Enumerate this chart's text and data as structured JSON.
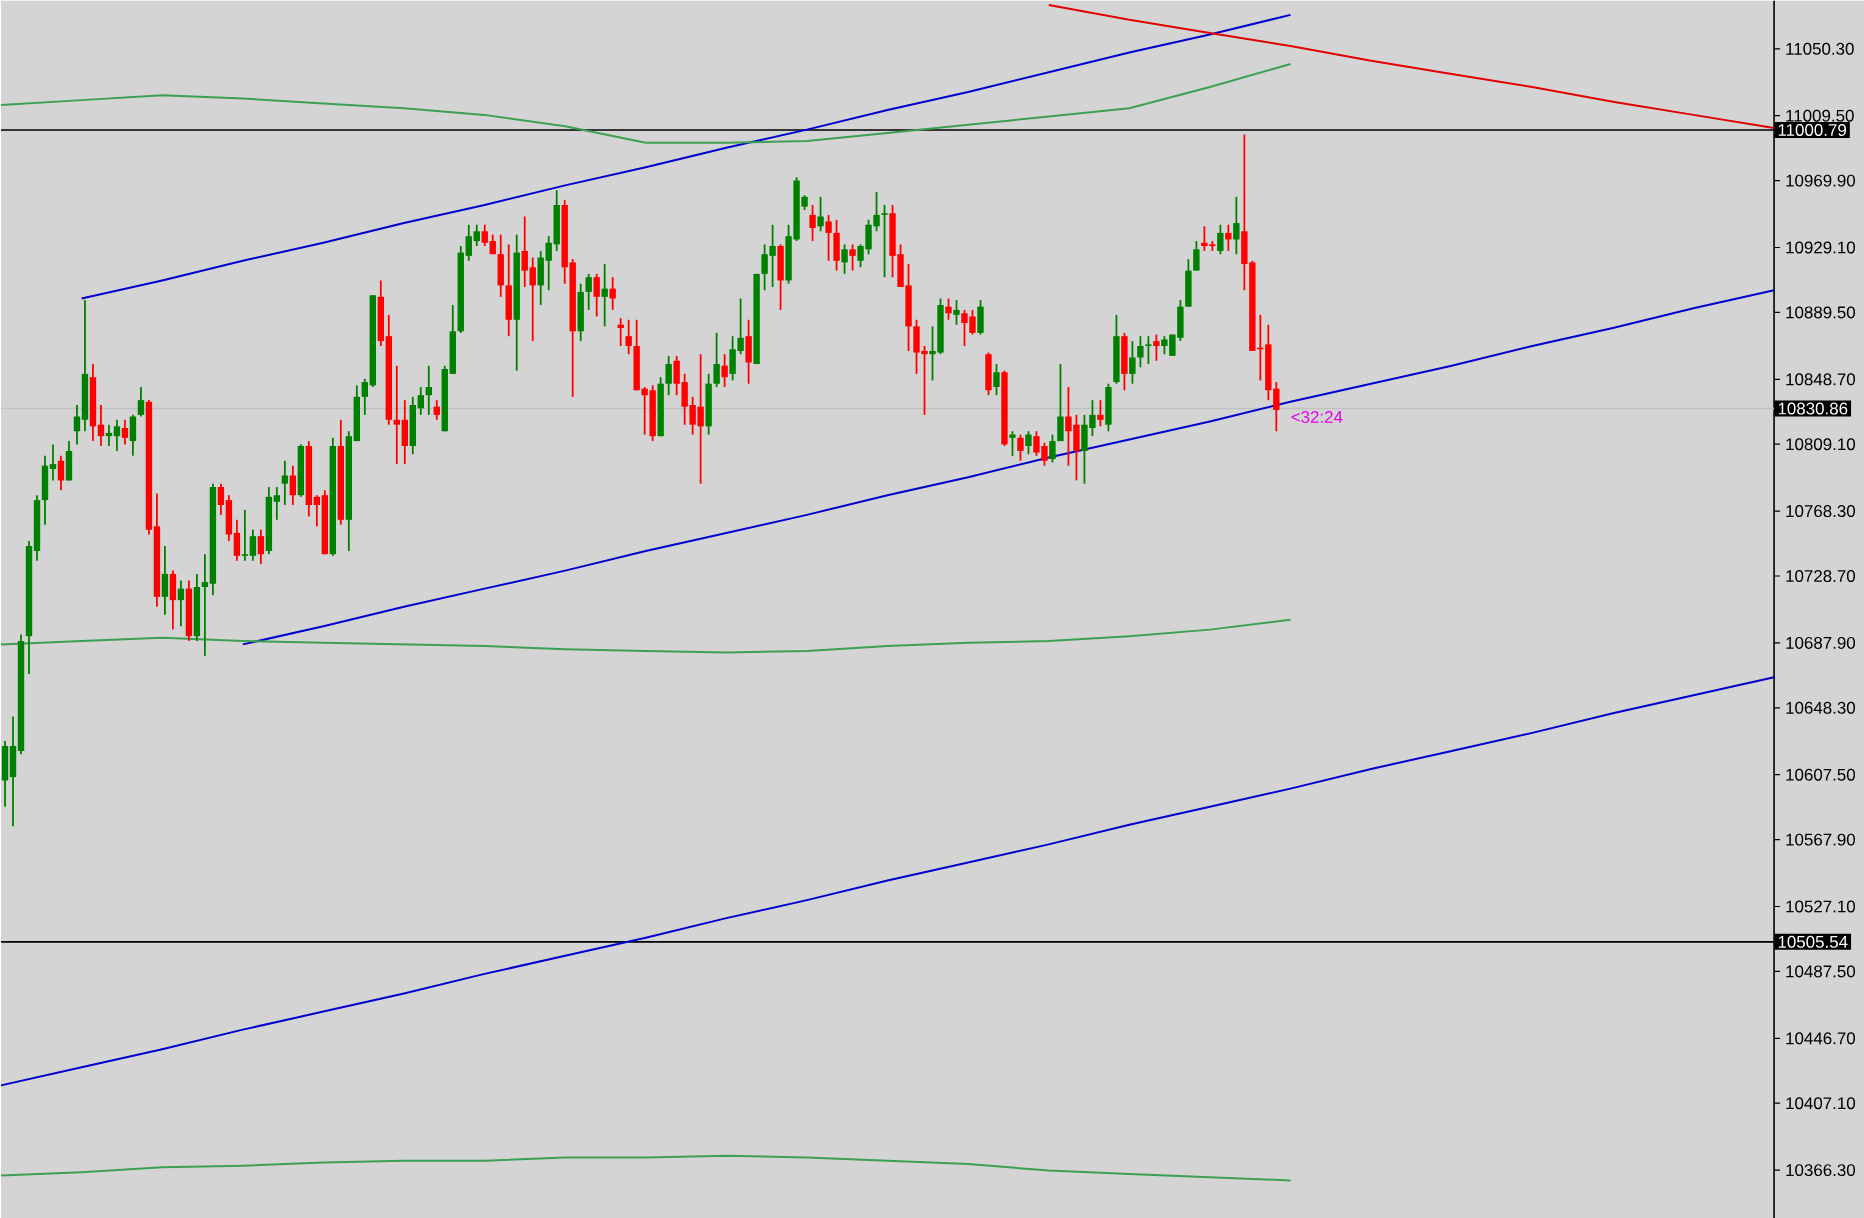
{
  "chart_data": [
    {
      "type": "candlestick",
      "categories": [
        null,
        null,
        null,
        null,
        null,
        null,
        null,
        null,
        null,
        null,
        null,
        null,
        null,
        null,
        null,
        null,
        null,
        null,
        null,
        null,
        null,
        null,
        null,
        null,
        null,
        null,
        null,
        null,
        null,
        null,
        null,
        null,
        null,
        null,
        null,
        null,
        null,
        null,
        null,
        null,
        null,
        null,
        null,
        null,
        null,
        null,
        null,
        null,
        null,
        null,
        null,
        null,
        null,
        null,
        null,
        null,
        null,
        null,
        null,
        null,
        null,
        null,
        null,
        null,
        null,
        null,
        null,
        null,
        null,
        null,
        null,
        null,
        null,
        null,
        null,
        null,
        null,
        null,
        null,
        null,
        null,
        null,
        null,
        null,
        null,
        null,
        null,
        null,
        null,
        null,
        null,
        null,
        null,
        null,
        null,
        null,
        null,
        null,
        null,
        null,
        null,
        null,
        null,
        null,
        null,
        null,
        null,
        null,
        null,
        null,
        null,
        null,
        null,
        null,
        null,
        null,
        null,
        null,
        null,
        null,
        null,
        null,
        null,
        null,
        null,
        null,
        null,
        null,
        null,
        null,
        null,
        null,
        null,
        null,
        null,
        null,
        null,
        null,
        null,
        null,
        null,
        null,
        null,
        null,
        null,
        null,
        null,
        null,
        null,
        null,
        null,
        null,
        null,
        null,
        null,
        null,
        null,
        null,
        null,
        null
      ],
      "ohlc": [
        [
          10604,
          10628,
          10588,
          10625
        ],
        [
          10606,
          10643,
          10576,
          10625
        ],
        [
          10622,
          10693,
          10620,
          10689
        ],
        [
          10692,
          10750,
          10669,
          10747
        ],
        [
          10744,
          10778,
          10738,
          10775
        ],
        [
          10775,
          10802,
          10760,
          10796
        ],
        [
          10794,
          10809,
          10787,
          10797
        ],
        [
          10799,
          10802,
          10781,
          10787
        ],
        [
          10787,
          10811,
          10787,
          10805
        ],
        [
          10817,
          10833,
          10809,
          10826
        ],
        [
          10824,
          10897,
          10817,
          10852
        ],
        [
          10850,
          10858,
          10811,
          10820
        ],
        [
          10821,
          10833,
          10808,
          10814
        ],
        [
          10814,
          10821,
          10808,
          10816
        ],
        [
          10814,
          10824,
          10805,
          10820
        ],
        [
          10819,
          10824,
          10809,
          10813
        ],
        [
          10811,
          10827,
          10802,
          10826
        ],
        [
          10827,
          10844,
          10826,
          10836
        ],
        [
          10835,
          10836,
          10754,
          10757
        ],
        [
          10759,
          10779,
          10710,
          10716
        ],
        [
          10716,
          10747,
          10705,
          10730
        ],
        [
          10730,
          10732,
          10696,
          10714
        ],
        [
          10714,
          10726,
          10698,
          10721
        ],
        [
          10721,
          10726,
          10689,
          10692
        ],
        [
          10692,
          10730,
          10689,
          10722
        ],
        [
          10722,
          10742,
          10680,
          10725
        ],
        [
          10724,
          10785,
          10717,
          10783
        ],
        [
          10783,
          10785,
          10766,
          10772
        ],
        [
          10775,
          10778,
          10750,
          10754
        ],
        [
          10755,
          10763,
          10738,
          10741
        ],
        [
          10741,
          10769,
          10738,
          10742
        ],
        [
          10741,
          10757,
          10738,
          10753
        ],
        [
          10753,
          10757,
          10736,
          10742
        ],
        [
          10744,
          10783,
          10742,
          10777
        ],
        [
          10774,
          10783,
          10763,
          10778
        ],
        [
          10785,
          10799,
          10772,
          10790
        ],
        [
          10790,
          10796,
          10772,
          10778
        ],
        [
          10778,
          10809,
          10777,
          10808
        ],
        [
          10808,
          10811,
          10765,
          10772
        ],
        [
          10777,
          10778,
          10759,
          10772
        ],
        [
          10778,
          10781,
          10742,
          10742
        ],
        [
          10742,
          10813,
          10741,
          10808
        ],
        [
          10808,
          10824,
          10760,
          10763
        ],
        [
          10763,
          10817,
          10744,
          10814
        ],
        [
          10811,
          10845,
          10811,
          10838
        ],
        [
          10838,
          10849,
          10827,
          10847
        ],
        [
          10845,
          10900,
          10844,
          10900
        ],
        [
          10899,
          10909,
          10869,
          10872
        ],
        [
          10875,
          10888,
          10821,
          10824
        ],
        [
          10824,
          10857,
          10797,
          10821
        ],
        [
          10824,
          10836,
          10797,
          10808
        ],
        [
          10808,
          10838,
          10803,
          10833
        ],
        [
          10831,
          10844,
          10827,
          10839
        ],
        [
          10839,
          10857,
          10827,
          10844
        ],
        [
          10832,
          10836,
          10824,
          10827
        ],
        [
          10817,
          10857,
          10817,
          10855
        ],
        [
          10852,
          10894,
          10852,
          10878
        ],
        [
          10878,
          10930,
          10877,
          10926
        ],
        [
          10924,
          10943,
          10921,
          10936
        ],
        [
          10933,
          10943,
          10930,
          10939
        ],
        [
          10939,
          10943,
          10930,
          10932
        ],
        [
          10933,
          10937,
          10925,
          10925
        ],
        [
          10925,
          10937,
          10899,
          10906
        ],
        [
          10906,
          10931,
          10875,
          10885
        ],
        [
          10885,
          10937,
          10854,
          10926
        ],
        [
          10927,
          10948,
          10905,
          10915
        ],
        [
          10917,
          10923,
          10872,
          10906
        ],
        [
          10906,
          10927,
          10894,
          10923
        ],
        [
          10921,
          10936,
          10903,
          10932
        ],
        [
          10931,
          10964,
          10927,
          10955
        ],
        [
          10955,
          10958,
          10907,
          10917
        ],
        [
          10920,
          10922,
          10838,
          10878
        ],
        [
          10878,
          10907,
          10872,
          10902
        ],
        [
          10902,
          10913,
          10891,
          10911
        ],
        [
          10911,
          10913,
          10887,
          10899
        ],
        [
          10899,
          10919,
          10881,
          10904
        ],
        [
          10904,
          10911,
          10891,
          10898
        ],
        [
          10882,
          10886,
          10869,
          10880
        ],
        [
          10875,
          10885,
          10864,
          10869
        ],
        [
          10869,
          10885,
          10842,
          10842
        ],
        [
          10843,
          10844,
          10815,
          10839
        ],
        [
          10842,
          10845,
          10811,
          10814
        ],
        [
          10814,
          10850,
          10814,
          10846
        ],
        [
          10846,
          10863,
          10839,
          10858
        ],
        [
          10860,
          10863,
          10839,
          10846
        ],
        [
          10847,
          10852,
          10821,
          10832
        ],
        [
          10833,
          10838,
          10815,
          10821
        ],
        [
          10832,
          10864,
          10785,
          10820
        ],
        [
          10820,
          10852,
          10815,
          10846
        ],
        [
          10846,
          10877,
          10844,
          10858
        ],
        [
          10857,
          10864,
          10844,
          10850
        ],
        [
          10852,
          10875,
          10848,
          10867
        ],
        [
          10866,
          10898,
          10864,
          10874
        ],
        [
          10875,
          10885,
          10846,
          10859
        ],
        [
          10858,
          10913,
          10858,
          10913
        ],
        [
          10913,
          10931,
          10903,
          10925
        ],
        [
          10924,
          10943,
          10905,
          10930
        ],
        [
          10930,
          10931,
          10891,
          10909
        ],
        [
          10909,
          10943,
          10907,
          10936
        ],
        [
          10934,
          10972,
          10933,
          10970
        ],
        [
          10954,
          10961,
          10952,
          10960
        ],
        [
          10949,
          10955,
          10933,
          10941
        ],
        [
          10942,
          10960,
          10939,
          10948
        ],
        [
          10945,
          10949,
          10921,
          10938
        ],
        [
          10938,
          10946,
          10915,
          10921
        ],
        [
          10920,
          10931,
          10913,
          10928
        ],
        [
          10928,
          10931,
          10915,
          10924
        ],
        [
          10921,
          10931,
          10917,
          10930
        ],
        [
          10928,
          10946,
          10925,
          10943
        ],
        [
          10942,
          10963,
          10939,
          10949
        ],
        [
          10949,
          10955,
          10911,
          10950
        ],
        [
          10950,
          10955,
          10911,
          10924
        ],
        [
          10925,
          10931,
          10905,
          10905
        ],
        [
          10906,
          10919,
          10866,
          10881
        ],
        [
          10881,
          10885,
          10852,
          10865
        ],
        [
          10866,
          10869,
          10827,
          10864
        ],
        [
          10864,
          10881,
          10848,
          10866
        ],
        [
          10865,
          10898,
          10864,
          10894
        ],
        [
          10893,
          10898,
          10885,
          10889
        ],
        [
          10888,
          10897,
          10882,
          10891
        ],
        [
          10889,
          10891,
          10869,
          10883
        ],
        [
          10887,
          10891,
          10876,
          10877
        ],
        [
          10877,
          10897,
          10876,
          10893
        ],
        [
          10864,
          10865,
          10839,
          10842
        ],
        [
          10844,
          10858,
          10839,
          10853
        ],
        [
          10853,
          10854,
          10808,
          10809
        ],
        [
          10813,
          10817,
          10802,
          10815
        ],
        [
          10813,
          10815,
          10799,
          10805
        ],
        [
          10808,
          10817,
          10803,
          10815
        ],
        [
          10814,
          10817,
          10802,
          10804
        ],
        [
          10808,
          10810,
          10796,
          10799
        ],
        [
          10800,
          10815,
          10798,
          10811
        ],
        [
          10811,
          10858,
          10811,
          10826
        ],
        [
          10826,
          10844,
          10796,
          10817
        ],
        [
          10821,
          10827,
          10787,
          10805
        ],
        [
          10805,
          10827,
          10785,
          10821
        ],
        [
          10819,
          10836,
          10814,
          10827
        ],
        [
          10827,
          10836,
          10820,
          10824
        ],
        [
          10821,
          10846,
          10817,
          10844
        ],
        [
          10847,
          10888,
          10846,
          10875
        ],
        [
          10875,
          10877,
          10842,
          10852
        ],
        [
          10852,
          10872,
          10846,
          10862
        ],
        [
          10862,
          10875,
          10856,
          10869
        ],
        [
          10869,
          10875,
          10858,
          10870
        ],
        [
          10872,
          10876,
          10860,
          10869
        ],
        [
          10869,
          10875,
          10864,
          10873
        ],
        [
          10863,
          10876,
          10863,
          10876
        ],
        [
          10874,
          10897,
          10872,
          10893
        ],
        [
          10893,
          10922,
          10893,
          10915
        ],
        [
          10915,
          10933,
          10915,
          10928
        ],
        [
          10932,
          10942,
          10927,
          10930
        ],
        [
          10931,
          10933,
          10927,
          10930
        ],
        [
          10927,
          10943,
          10925,
          10938
        ],
        [
          10938,
          10943,
          10927,
          10934
        ],
        [
          10934,
          10960,
          10925,
          10944
        ],
        [
          10939,
          10998,
          10903,
          10919
        ],
        [
          10920,
          10921,
          10866,
          10866
        ],
        [
          10868,
          10888,
          10848,
          10867
        ],
        [
          10870,
          10882,
          10836,
          10842
        ],
        [
          10843,
          10847,
          10817,
          10830
        ]
      ],
      "colors": [
        "#008000",
        "#008000",
        "#008000",
        "#008000",
        "#008000",
        "#008000",
        "#008000",
        "#ff0000",
        "#008000",
        "#008000",
        "#008000",
        "#ff0000",
        "#ff0000",
        "#008000",
        "#008000",
        "#ff0000",
        "#008000",
        "#008000",
        "#ff0000",
        "#ff0000",
        "#008000",
        "#ff0000",
        "#008000",
        "#ff0000",
        "#008000",
        "#008000",
        "#008000",
        "#ff0000",
        "#ff0000",
        "#ff0000",
        "#008000",
        "#008000",
        "#ff0000",
        "#008000",
        "#008000",
        "#008000",
        "#ff0000",
        "#008000",
        "#ff0000",
        "#ff0000",
        "#ff0000",
        "#008000",
        "#ff0000",
        "#008000",
        "#008000",
        "#008000",
        "#008000",
        "#ff0000",
        "#ff0000",
        "#ff0000",
        "#ff0000",
        "#008000",
        "#008000",
        "#008000",
        "#ff0000",
        "#008000",
        "#008000",
        "#008000",
        "#008000",
        "#008000",
        "#ff0000",
        "#ff0000",
        "#ff0000",
        "#ff0000",
        "#008000",
        "#ff0000",
        "#ff0000",
        "#008000",
        "#008000",
        "#008000",
        "#ff0000",
        "#ff0000",
        "#008000",
        "#008000",
        "#ff0000",
        "#008000",
        "#ff0000",
        "#ff0000",
        "#ff0000",
        "#ff0000",
        "#ff0000",
        "#ff0000",
        "#008000",
        "#008000",
        "#ff0000",
        "#ff0000",
        "#ff0000",
        "#ff0000",
        "#008000",
        "#008000",
        "#ff0000",
        "#008000",
        "#008000",
        "#ff0000",
        "#008000",
        "#008000",
        "#008000",
        "#ff0000",
        "#008000",
        "#008000",
        "#008000",
        "#ff0000",
        "#008000",
        "#ff0000",
        "#ff0000",
        "#008000",
        "#ff0000",
        "#008000",
        "#008000",
        "#008000",
        "#008000",
        "#ff0000",
        "#ff0000",
        "#ff0000",
        "#ff0000",
        "#ff0000",
        "#008000",
        "#008000",
        "#ff0000",
        "#008000",
        "#ff0000",
        "#ff0000",
        "#008000",
        "#ff0000",
        "#008000",
        "#ff0000",
        "#008000",
        "#ff0000",
        "#008000",
        "#ff0000",
        "#ff0000",
        "#008000",
        "#008000",
        "#ff0000",
        "#ff0000",
        "#008000",
        "#008000",
        "#ff0000",
        "#008000",
        "#008000",
        "#ff0000",
        "#008000",
        "#008000",
        "#008000",
        "#ff0000",
        "#008000",
        "#008000",
        "#008000",
        "#008000",
        "#008000",
        "#ff0000",
        "#ff0000",
        "#008000",
        "#ff0000",
        "#008000",
        "#ff0000",
        "#ff0000",
        "#ff0000",
        "#ff0000",
        "#ff0000"
      ],
      "ylim": [
        10337.0,
        11079.6
      ],
      "tick_labels": false
    },
    {
      "type": "line",
      "categories": [
        null,
        null,
        null,
        null,
        null,
        null,
        null,
        null,
        null,
        null,
        null,
        null,
        null,
        null,
        null,
        null,
        null,
        null,
        null,
        null,
        null,
        null,
        null
      ],
      "ylim": [
        10337.0,
        11079.6
      ],
      "yticks": [
        {
          "value": 11050.3,
          "label": "11050.30"
        },
        {
          "value": 11009.5,
          "label": "11009.50"
        },
        {
          "value": 10969.9,
          "label": "10969.90"
        },
        {
          "value": 10929.1,
          "label": "10929.10"
        },
        {
          "value": 10889.5,
          "label": "10889.50"
        },
        {
          "value": 10848.7,
          "label": "10848.70"
        },
        {
          "value": 10809.1,
          "label": "10809.10"
        },
        {
          "value": 10768.3,
          "label": "10768.30"
        },
        {
          "value": 10728.7,
          "label": "10728.70"
        },
        {
          "value": 10687.9,
          "label": "10687.90"
        },
        {
          "value": 10648.3,
          "label": "10648.30"
        },
        {
          "value": 10607.5,
          "label": "10607.50"
        },
        {
          "value": 10567.9,
          "label": "10567.90"
        },
        {
          "value": 10527.1,
          "label": "10527.10"
        },
        {
          "value": 10487.5,
          "label": "10487.50"
        },
        {
          "value": 10446.7,
          "label": "10446.70"
        },
        {
          "value": 10407.1,
          "label": "10407.10"
        },
        {
          "value": 10366.3,
          "label": "10366.30"
        }
      ],
      "tick_labels": "y",
      "ref_lines": [
        {
          "axis": "y",
          "value": 11000.79,
          "label": "11000.79",
          "color": "#000000"
        },
        {
          "axis": "y",
          "value": 10830.86,
          "label": "10830.86",
          "color": "#c0c0c0"
        },
        {
          "axis": "y",
          "value": 10505.54,
          "label": "10505.54",
          "color": "#000000"
        }
      ],
      "annotations": [
        "<32:24"
      ],
      "series": [
        {
          "color": "#0000cc",
          "values": [
            null,
            10898,
            10909,
            10921,
            10932,
            10944,
            10955,
            10967,
            10978,
            10990,
            11001,
            11013,
            11024,
            11036,
            11048,
            11059,
            11071,
            null,
            null,
            null,
            null,
            null,
            null
          ]
        },
        {
          "color": "#0000cc",
          "values": [
            null,
            null,
            null,
            10687,
            10698,
            10710,
            10721,
            10732,
            10744,
            10755,
            10766,
            10778,
            10789,
            10801,
            10812,
            10823,
            10835,
            10846,
            10857,
            10869,
            10880,
            10892,
            10903
          ]
        },
        {
          "color": "#0000cc",
          "values": [
            10418,
            10429,
            10440,
            10452,
            10463,
            10474,
            10486,
            10497,
            10508,
            10520,
            10531,
            10543,
            10554,
            10565,
            10577,
            10588,
            10599,
            10611,
            10622,
            10633,
            10645,
            10656,
            10667
          ]
        },
        {
          "color": "#e00000",
          "values": [
            null,
            null,
            null,
            null,
            null,
            null,
            null,
            null,
            null,
            null,
            null,
            null,
            null,
            11077,
            11068,
            11060,
            11052,
            11043,
            11035,
            11027,
            11018,
            11010,
            11002
          ]
        },
        {
          "color": "#3ca050",
          "values": [
            11016,
            11019,
            11022,
            11020,
            11017,
            11014,
            11010,
            11003,
            10993,
            10993,
            10994,
            10999,
            11004,
            11009,
            11014,
            11027,
            11041,
            null,
            null,
            null,
            null,
            null,
            null
          ]
        },
        {
          "color": "#3ca050",
          "values": [
            10687,
            10689,
            10691,
            10689,
            10688,
            10687,
            10686,
            10684,
            10683,
            10682,
            10683,
            10686,
            10688,
            10689,
            10692,
            10696,
            10702,
            null,
            null,
            null,
            null,
            null,
            null
          ]
        },
        {
          "color": "#3ca050",
          "values": [
            10363,
            10365,
            10368,
            10369,
            10371,
            10372,
            10372,
            10374,
            10374,
            10375,
            10374,
            10372,
            10370,
            10366,
            10364,
            10362,
            10360,
            null,
            null,
            null,
            null,
            null,
            null
          ]
        }
      ]
    }
  ]
}
